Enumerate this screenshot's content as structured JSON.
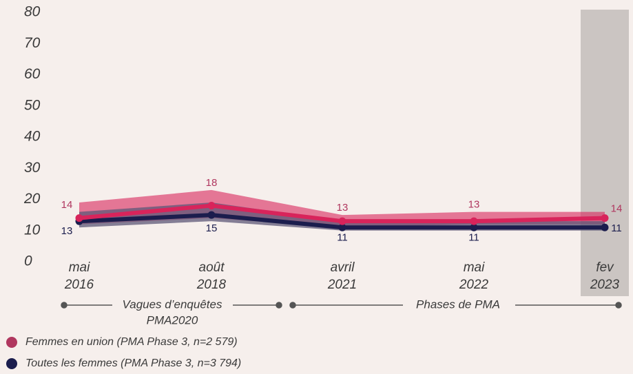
{
  "chart_data": {
    "type": "line",
    "categories": [
      [
        "mai",
        "2016"
      ],
      [
        "août",
        "2018"
      ],
      [
        "avril",
        "2021"
      ],
      [
        "mai",
        "2022"
      ],
      [
        "fev",
        "2023"
      ]
    ],
    "ylim": [
      0,
      80
    ],
    "yticks": [
      0,
      10,
      20,
      30,
      40,
      50,
      60,
      70,
      80
    ],
    "highlight_category": 4,
    "series": [
      {
        "name": "Femmes en union (PMA Phase 3, n=2 579)",
        "color": "#d8245b",
        "band_color": "#d8245b",
        "values": [
          14,
          18,
          13,
          13,
          14
        ],
        "lower": [
          12,
          14,
          11,
          12,
          12
        ],
        "upper": [
          19,
          23,
          15,
          16,
          16
        ]
      },
      {
        "name": "Toutes les femmes (PMA Phase 3, n=3 794)",
        "color": "#1b1d4d",
        "band_color": "#5e5878",
        "values": [
          13,
          15,
          11,
          11,
          11
        ],
        "lower": [
          11,
          13,
          10,
          10,
          10
        ],
        "upper": [
          16,
          19,
          13,
          13,
          13
        ]
      }
    ],
    "annotations": [
      [
        "Vagues d’enquêtes",
        "PMA2020"
      ],
      [
        "Phases de PMA"
      ]
    ]
  }
}
